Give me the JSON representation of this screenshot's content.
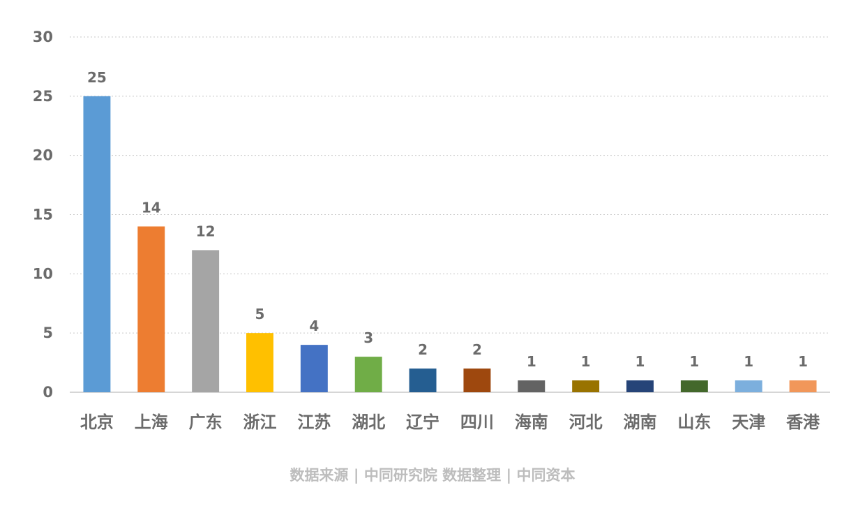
{
  "chart_data": {
    "type": "bar",
    "categories": [
      "北京",
      "上海",
      "广东",
      "浙江",
      "江苏",
      "湖北",
      "辽宁",
      "四川",
      "海南",
      "河北",
      "湖南",
      "山东",
      "天津",
      "香港"
    ],
    "values": [
      25,
      14,
      12,
      5,
      4,
      3,
      2,
      2,
      1,
      1,
      1,
      1,
      1,
      1
    ],
    "colors": [
      "#5b9bd5",
      "#ed7d31",
      "#a5a5a5",
      "#ffc000",
      "#4472c4",
      "#70ad47",
      "#255e91",
      "#9e480e",
      "#636363",
      "#997300",
      "#264478",
      "#43682b",
      "#7cafdd",
      "#f1975a"
    ],
    "ylim": [
      0,
      30
    ],
    "yticks": [
      0,
      5,
      10,
      15,
      20,
      25,
      30
    ],
    "grid": true,
    "data_labels": true,
    "source": "数据来源 | 中同研究院  数据整理 | 中同资本"
  }
}
